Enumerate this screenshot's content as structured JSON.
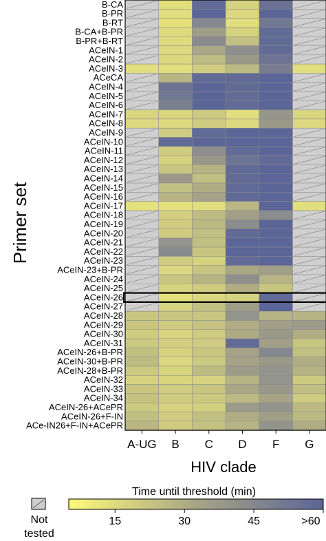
{
  "chart_data": {
    "type": "heatmap",
    "xlabel": "HIV clade",
    "ylabel": "Primer set",
    "columns": [
      "A-UG",
      "B",
      "C",
      "D",
      "F",
      "G"
    ],
    "rows": [
      "B-CA",
      "B-PR",
      "B-RT",
      "B-CA+B-PR",
      "B-PR+B-RT",
      "ACeIN-1",
      "ACeIN-2",
      "ACeIN-3",
      "ACeCA",
      "ACeIN-4",
      "ACeIN-5",
      "ACeIN-6",
      "ACeIN-7",
      "ACeIN-8",
      "ACeIN-9",
      "ACeIN-10",
      "ACeIN-11",
      "ACeIN-12",
      "ACeIN-13",
      "ACeIN-14",
      "ACeIN-15",
      "ACeIN-16",
      "ACeIN-17",
      "ACeIN-18",
      "ACeIN-19",
      "ACeIN-20",
      "ACeIN-21",
      "ACeIN-22",
      "ACeIN-23",
      "ACeIN-23+B-PR",
      "ACeIN-24",
      "ACeIN-25",
      "ACeIN-26",
      "ACeIN-27",
      "ACeIN-28",
      "ACeIN-29",
      "ACeIN-30",
      "ACeIN-31",
      "ACeIN-26+B-PR",
      "ACeIN-30+B-PR",
      "ACeIN-28+B-PR",
      "ACeIN-32",
      "ACeIN-33",
      "ACeIN-34",
      "ACeIN-26+ACePR",
      "ACeIN-26+F-IN",
      "ACe-IN26+F-IN+ACePR"
    ],
    "highlighted_row": "ACeIN-26",
    "values_unit": "min",
    "values": [
      [
        null,
        14,
        58,
        18,
        55,
        null
      ],
      [
        null,
        14,
        60,
        16,
        60,
        null
      ],
      [
        null,
        13,
        45,
        14,
        52,
        null
      ],
      [
        null,
        15,
        36,
        18,
        58,
        null
      ],
      [
        null,
        15,
        44,
        24,
        58,
        null
      ],
      [
        null,
        16,
        32,
        42,
        58,
        null
      ],
      [
        null,
        16,
        25,
        38,
        54,
        null
      ],
      [
        14,
        14,
        20,
        26,
        50,
        14
      ],
      [
        null,
        27,
        58,
        58,
        60,
        null
      ],
      [
        null,
        54,
        60,
        58,
        60,
        null
      ],
      [
        null,
        52,
        60,
        57,
        60,
        null
      ],
      [
        null,
        49,
        60,
        58,
        60,
        null
      ],
      [
        17,
        17,
        21,
        14,
        39,
        17
      ],
      [
        16,
        16,
        20,
        16,
        38,
        16
      ],
      [
        null,
        20,
        58,
        60,
        60,
        null
      ],
      [
        null,
        58,
        60,
        60,
        60,
        null
      ],
      [
        null,
        20,
        42,
        58,
        60,
        null
      ],
      [
        null,
        18,
        38,
        54,
        58,
        null
      ],
      [
        null,
        22,
        28,
        58,
        60,
        null
      ],
      [
        null,
        38,
        24,
        58,
        60,
        null
      ],
      [
        null,
        24,
        30,
        58,
        60,
        null
      ],
      [
        null,
        28,
        34,
        58,
        60,
        null
      ],
      [
        13,
        13,
        14,
        27,
        60,
        14
      ],
      [
        null,
        19,
        25,
        35,
        43,
        null
      ],
      [
        null,
        20,
        26,
        43,
        60,
        null
      ],
      [
        null,
        20,
        24,
        58,
        60,
        null
      ],
      [
        null,
        40,
        24,
        60,
        60,
        null
      ],
      [
        null,
        44,
        22,
        60,
        60,
        null
      ],
      [
        null,
        20,
        18,
        58,
        60,
        null
      ],
      [
        null,
        16,
        22,
        32,
        35,
        null
      ],
      [
        null,
        22,
        28,
        42,
        28,
        null
      ],
      [
        null,
        18,
        20,
        30,
        22,
        null
      ],
      [
        null,
        13,
        16,
        18,
        58,
        null
      ],
      [
        null,
        18,
        24,
        36,
        60,
        null
      ],
      [
        22,
        22,
        22,
        40,
        28,
        28
      ],
      [
        22,
        20,
        23,
        30,
        35,
        37
      ],
      [
        20,
        17,
        20,
        31,
        38,
        30
      ],
      [
        21,
        19,
        20,
        58,
        35,
        22
      ],
      [
        24,
        18,
        22,
        34,
        45,
        24
      ],
      [
        25,
        16,
        21,
        34,
        38,
        30
      ],
      [
        21,
        17,
        25,
        37,
        40,
        28
      ],
      [
        18,
        17,
        18,
        28,
        40,
        21
      ],
      [
        22,
        20,
        22,
        32,
        38,
        24
      ],
      [
        23,
        20,
        21,
        26,
        33,
        20
      ],
      [
        21,
        18,
        19,
        37,
        40,
        26
      ],
      [
        24,
        20,
        24,
        30,
        35,
        26
      ],
      [
        27,
        20,
        23,
        28,
        40,
        30
      ]
    ],
    "color_scale": {
      "title": "Time until threshold (min)",
      "min": 5,
      "max": 60,
      "ticks": [
        "15",
        "30",
        "45",
        ">60"
      ],
      "tick_values": [
        15,
        30,
        45,
        60
      ],
      "low_color": "#fdfa7a",
      "mid_color": "#a8a586",
      "high_color": "#5c6597"
    },
    "not_tested_label": "Not tested",
    "not_tested_color": "#cfcfcf"
  }
}
